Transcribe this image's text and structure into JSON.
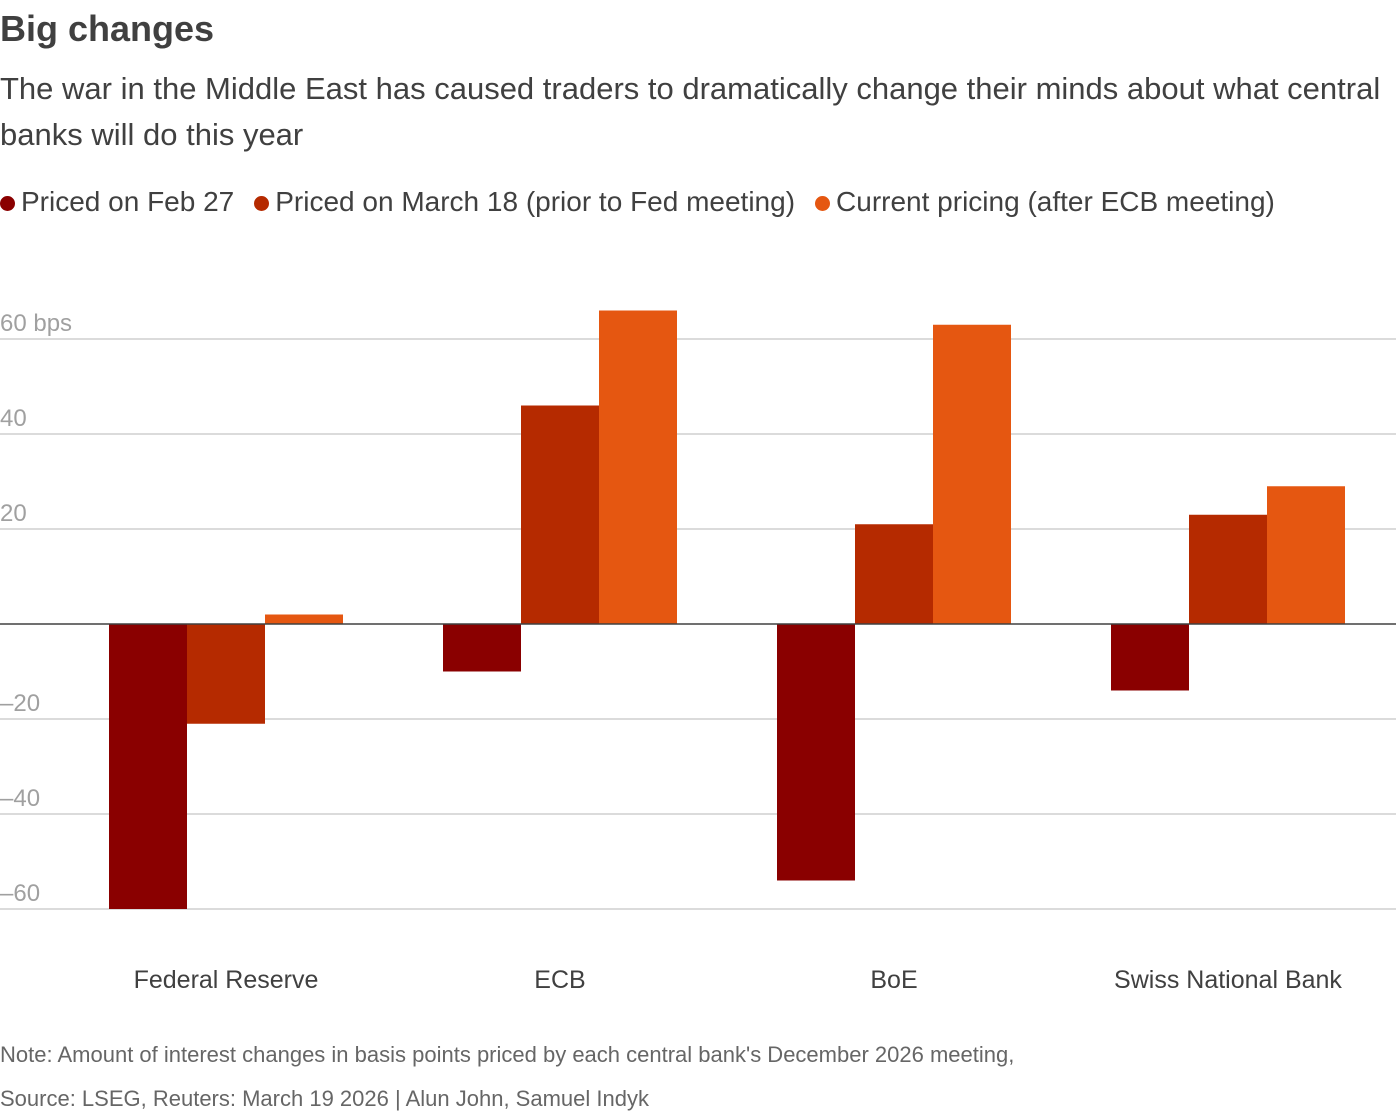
{
  "title": "Big changes",
  "subtitle": "The war in the Middle East has caused traders to dramatically change their minds about what central banks will do this year",
  "note": "Note: Amount of interest changes in basis points priced by each central bank's December 2026 meeting,",
  "source": "Source: LSEG, Reuters: March 19 2026 | Alun John, Samuel Indyk",
  "chart_data": {
    "type": "bar",
    "categories": [
      "Federal Reserve",
      "ECB",
      "BoE",
      "Swiss National Bank"
    ],
    "series": [
      {
        "name": "Priced on Feb 27",
        "color": "#8a0000",
        "values": [
          -60,
          -10,
          -54,
          -14
        ]
      },
      {
        "name": "Priced on March 18 (prior to Fed meeting)",
        "color": "#b52a00",
        "values": [
          -21,
          46,
          21,
          23
        ]
      },
      {
        "name": "Current pricing (after ECB meeting)",
        "color": "#e55711",
        "values": [
          2,
          66,
          63,
          29
        ]
      }
    ],
    "yticks": [
      60,
      40,
      20,
      -20,
      -40,
      -60
    ],
    "ytick_labels": [
      "60 bps",
      "40",
      "20",
      "–20",
      "–40",
      "–60"
    ],
    "ylim": [
      -60,
      60
    ],
    "grid": true,
    "legend": "top-left"
  }
}
